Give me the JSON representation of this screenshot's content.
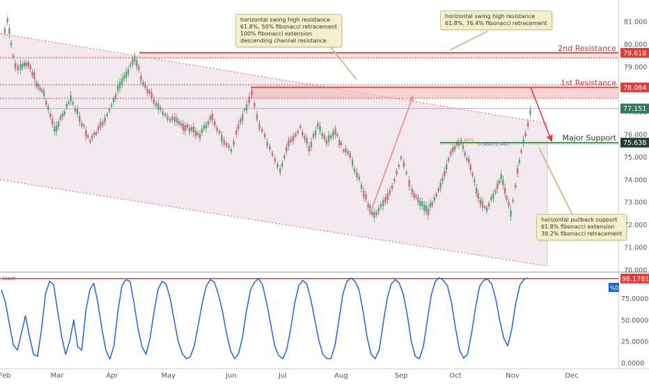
{
  "chart_data": [
    {
      "type": "candlestick",
      "title": "",
      "ylim": [
        69.9,
        81.2
      ],
      "x_months": [
        "Feb",
        "Mar",
        "Apr",
        "May",
        "Jun",
        "Jul",
        "Aug",
        "Sep",
        "Oct",
        "Nov",
        "Dec"
      ],
      "y_ticks": [
        "81.000",
        "80.000",
        "79.000",
        "78.000",
        "77.000",
        "76.000",
        "75.000",
        "74.000",
        "73.000",
        "72.000",
        "71.000",
        "70.000"
      ],
      "y_tick_values": [
        81,
        80,
        79,
        78,
        77,
        76,
        75,
        74,
        73,
        72,
        71,
        70
      ],
      "price_path": [
        {
          "m": 0.0,
          "v": 80.6
        },
        {
          "m": 0.05,
          "v": 81.0
        },
        {
          "m": 0.12,
          "v": 80.0
        },
        {
          "m": 0.2,
          "v": 79.0
        },
        {
          "m": 0.3,
          "v": 78.9
        },
        {
          "m": 0.45,
          "v": 79.2
        },
        {
          "m": 0.6,
          "v": 78.3
        },
        {
          "m": 0.75,
          "v": 77.8
        },
        {
          "m": 0.95,
          "v": 76.2
        },
        {
          "m": 1.1,
          "v": 76.8
        },
        {
          "m": 1.25,
          "v": 77.6
        },
        {
          "m": 1.45,
          "v": 76.5
        },
        {
          "m": 1.6,
          "v": 75.7
        },
        {
          "m": 1.75,
          "v": 76.2
        },
        {
          "m": 1.95,
          "v": 77.0
        },
        {
          "m": 2.1,
          "v": 78.0
        },
        {
          "m": 2.25,
          "v": 78.7
        },
        {
          "m": 2.4,
          "v": 79.4
        },
        {
          "m": 2.55,
          "v": 78.3
        },
        {
          "m": 2.7,
          "v": 77.7
        },
        {
          "m": 2.9,
          "v": 76.9
        },
        {
          "m": 3.1,
          "v": 76.6
        },
        {
          "m": 3.3,
          "v": 76.3
        },
        {
          "m": 3.5,
          "v": 76.0
        },
        {
          "m": 3.7,
          "v": 76.8
        },
        {
          "m": 3.85,
          "v": 75.8
        },
        {
          "m": 4.0,
          "v": 75.3
        },
        {
          "m": 4.1,
          "v": 76.0
        },
        {
          "m": 4.3,
          "v": 77.3
        },
        {
          "m": 4.4,
          "v": 77.8
        },
        {
          "m": 4.55,
          "v": 76.4
        },
        {
          "m": 4.7,
          "v": 75.6
        },
        {
          "m": 4.85,
          "v": 74.8
        },
        {
          "m": 4.95,
          "v": 74.4
        },
        {
          "m": 5.1,
          "v": 75.6
        },
        {
          "m": 5.3,
          "v": 76.3
        },
        {
          "m": 5.45,
          "v": 75.4
        },
        {
          "m": 5.6,
          "v": 76.4
        },
        {
          "m": 5.75,
          "v": 75.6
        },
        {
          "m": 5.9,
          "v": 76.1
        },
        {
          "m": 6.0,
          "v": 75.5
        },
        {
          "m": 6.15,
          "v": 75.0
        },
        {
          "m": 6.3,
          "v": 74.0
        },
        {
          "m": 6.45,
          "v": 72.9
        },
        {
          "m": 6.55,
          "v": 72.4
        },
        {
          "m": 6.7,
          "v": 73.0
        },
        {
          "m": 6.85,
          "v": 73.6
        },
        {
          "m": 7.0,
          "v": 74.9
        },
        {
          "m": 7.1,
          "v": 74.3
        },
        {
          "m": 7.2,
          "v": 73.5
        },
        {
          "m": 7.35,
          "v": 73.0
        },
        {
          "m": 7.5,
          "v": 72.6
        },
        {
          "m": 7.65,
          "v": 73.4
        },
        {
          "m": 7.8,
          "v": 74.2
        },
        {
          "m": 7.95,
          "v": 75.4
        },
        {
          "m": 8.1,
          "v": 75.6
        },
        {
          "m": 8.2,
          "v": 75.0
        },
        {
          "m": 8.3,
          "v": 74.3
        },
        {
          "m": 8.4,
          "v": 73.2
        },
        {
          "m": 8.55,
          "v": 72.7
        },
        {
          "m": 8.7,
          "v": 73.5
        },
        {
          "m": 8.8,
          "v": 74.1
        },
        {
          "m": 8.9,
          "v": 73.2
        },
        {
          "m": 8.97,
          "v": 72.5
        },
        {
          "m": 9.05,
          "v": 73.8
        },
        {
          "m": 9.15,
          "v": 75.3
        },
        {
          "m": 9.22,
          "v": 76.0
        },
        {
          "m": 9.3,
          "v": 77.0
        },
        {
          "m": 9.34,
          "v": 77.2
        }
      ],
      "levels": [
        {
          "name": "2nd Resistance",
          "value": 79.618,
          "color": "#e53935"
        },
        {
          "name": "1st Resistance",
          "value": 78.084,
          "color": "#e53935"
        },
        {
          "name": "Major Support",
          "value": 75.638,
          "color": "#2e7d32"
        }
      ],
      "resistance_band_2": [
        79.35,
        79.7
      ],
      "resistance_band_1": [
        77.6,
        78.15
      ],
      "current_price": 77.151,
      "fib_labels": [
        "61.80%",
        "0.382(75.542)"
      ],
      "annotations": [
        [
          "horizontal swing high resistance",
          "61.8%, 50% fibonacci retracement",
          "100% fibonacci extension",
          "descending channel resistance"
        ],
        [
          "horizontal swing high resistance",
          "61.8%, 76.4% fibonacci retracement"
        ],
        [
          "horizontal pullback support",
          "61.8% fibonacci extension",
          "38.2% fibonacci retracement"
        ]
      ]
    },
    {
      "type": "line",
      "title": "Stoch",
      "ylim": [
        -3,
        103
      ],
      "y_ticks": [
        "75.0000",
        "50.0000",
        "25.0000",
        "0.0000"
      ],
      "y_tick_values": [
        75,
        50,
        25,
        0
      ],
      "legend": "%D",
      "upper_level": 98.1781,
      "last_value": "98.1781",
      "series": [
        {
          "name": "%D",
          "values": [
            85,
            70,
            45,
            20,
            15,
            35,
            55,
            30,
            10,
            8,
            40,
            80,
            95,
            90,
            60,
            30,
            10,
            25,
            50,
            20,
            15,
            60,
            85,
            92,
            70,
            40,
            15,
            5,
            20,
            60,
            90,
            98,
            95,
            70,
            40,
            20,
            10,
            30,
            60,
            85,
            95,
            92,
            75,
            50,
            25,
            10,
            5,
            8,
            20,
            45,
            70,
            90,
            97,
            95,
            80,
            60,
            35,
            15,
            5,
            10,
            30,
            60,
            85,
            95,
            98,
            90,
            70,
            45,
            20,
            8,
            5,
            15,
            40,
            70,
            90,
            97,
            92,
            75,
            50,
            25,
            10,
            5,
            5,
            20,
            50,
            80,
            95,
            98,
            95,
            85,
            60,
            30,
            10,
            5,
            15,
            45,
            75,
            92,
            97,
            94,
            80,
            55,
            25,
            8,
            5,
            20,
            50,
            80,
            95,
            98,
            96,
            90,
            70,
            40,
            15,
            5,
            10,
            35,
            65,
            88,
            96,
            98,
            92,
            75,
            50,
            30,
            20,
            40,
            70,
            90,
            97,
            98
          ]
        }
      ]
    }
  ]
}
